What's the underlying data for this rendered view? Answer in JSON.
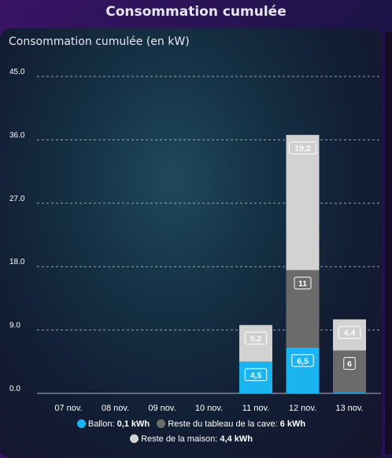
{
  "header": {
    "title": "Consommation cumulée"
  },
  "colors": {
    "ballon": "#1ab4f0",
    "cave": "#6b6b6b",
    "maison": "#d2d2d2"
  },
  "chart_data": {
    "type": "bar",
    "stacked": true,
    "title": "Consommation cumulée (en kW)",
    "categories": [
      "07 nov.",
      "08 nov.",
      "09 nov.",
      "10 nov.",
      "11 nov.",
      "12 nov.",
      "13 nov."
    ],
    "y_ticks": [
      "0.0",
      "9.0",
      "18.0",
      "27.0",
      "36.0",
      "45.0"
    ],
    "ylim": [
      0,
      45
    ],
    "grid": true,
    "legend_position": "bottom",
    "series": [
      {
        "name": "Ballon",
        "color": "#1ab4f0",
        "values": [
          0,
          0,
          0,
          0,
          4.5,
          6.5,
          0.1
        ],
        "labels": [
          "",
          "",
          "",
          "",
          "4,5",
          "6,5",
          ""
        ]
      },
      {
        "name": "Reste du tableau de la cave",
        "color": "#6b6b6b",
        "values": [
          0,
          0,
          0,
          0,
          0,
          11,
          6
        ],
        "labels": [
          "",
          "",
          "",
          "",
          "",
          "11",
          "6"
        ]
      },
      {
        "name": "Reste de la maison",
        "color": "#d2d2d2",
        "values": [
          0,
          0,
          0,
          0,
          5.2,
          19.2,
          4.4
        ],
        "labels": [
          "",
          "",
          "",
          "",
          "5,2",
          "19,2",
          "4,4"
        ]
      }
    ]
  },
  "legend": [
    {
      "name": "Ballon",
      "value": "0,1 kWh",
      "color": "#1ab4f0"
    },
    {
      "name": "Reste du tableau de la cave",
      "value": "6 kWh",
      "color": "#6b6b6b"
    },
    {
      "name": "Reste de la maison",
      "value": "4,4 kWh",
      "color": "#d2d2d2"
    }
  ]
}
